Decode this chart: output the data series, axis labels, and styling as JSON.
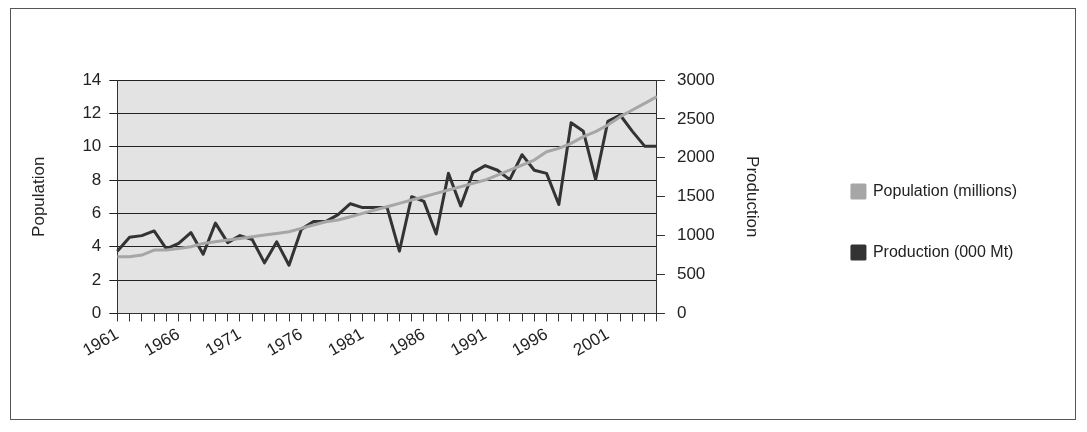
{
  "chart_data": {
    "type": "line",
    "categories": [
      "1961",
      null,
      null,
      null,
      null,
      "1966",
      null,
      null,
      null,
      null,
      "1971",
      null,
      null,
      null,
      null,
      "1976",
      null,
      null,
      null,
      null,
      "1981",
      null,
      null,
      null,
      null,
      "1986",
      null,
      null,
      null,
      null,
      "1991",
      null,
      null,
      null,
      null,
      "1996",
      null,
      null,
      null,
      null,
      "2001",
      null,
      null,
      null,
      null
    ],
    "series": [
      {
        "name": "Population (millions)",
        "color": "#a6a6a6",
        "values": [
          3.4,
          3.4,
          3.5,
          3.8,
          3.8,
          3.9,
          4.0,
          4.2,
          4.3,
          4.4,
          4.5,
          4.6,
          4.7,
          4.8,
          4.9,
          5.1,
          5.3,
          5.5,
          5.6,
          5.8,
          6.0,
          6.2,
          6.4,
          6.6,
          6.8,
          7.0,
          7.2,
          7.4,
          7.6,
          7.8,
          8.0,
          8.3,
          8.6,
          8.9,
          9.2,
          9.7,
          9.9,
          10.2,
          10.6,
          10.9,
          11.3,
          11.8,
          12.2,
          12.6,
          13.0
        ]
      },
      {
        "name": "Production (000 Mt)",
        "color": "#333333",
        "axis": "y2",
        "values": [
          800,
          980,
          1000,
          1060,
          830,
          900,
          1040,
          760,
          1160,
          910,
          1000,
          950,
          650,
          920,
          620,
          1080,
          1180,
          1180,
          1270,
          1410,
          1360,
          1360,
          1360,
          800,
          1500,
          1440,
          1020,
          1800,
          1380,
          1810,
          1900,
          1840,
          1720,
          2040,
          1840,
          1800,
          1400,
          2450,
          2340,
          1720,
          2470,
          2550,
          2340,
          2150,
          2150
        ]
      }
    ],
    "ylabel": "Population",
    "y2label": "Production",
    "ylim": [
      0,
      14
    ],
    "yticks": [
      0,
      2,
      4,
      6,
      8,
      10,
      12,
      14
    ],
    "y2lim": [
      0,
      3000
    ],
    "y2ticks": [
      0,
      500,
      1000,
      1500,
      2000,
      2500,
      3000
    ],
    "grid": "y",
    "legend": "right",
    "marker": "none",
    "line_style": "solid"
  }
}
